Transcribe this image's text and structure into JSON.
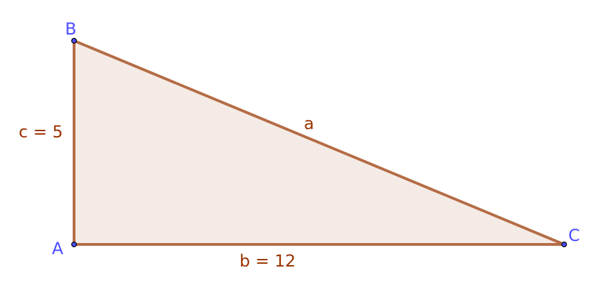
{
  "points": {
    "A": "A",
    "B": "B",
    "C": "C"
  },
  "segments": {
    "a": "a",
    "b": "b = 12",
    "c": "c = 5"
  },
  "colors": {
    "edge": "#b46c45",
    "fill": "#f5ebe6",
    "point": "#4d4dff",
    "point_label": "#4d4dff",
    "segment_label": "#993300"
  }
}
